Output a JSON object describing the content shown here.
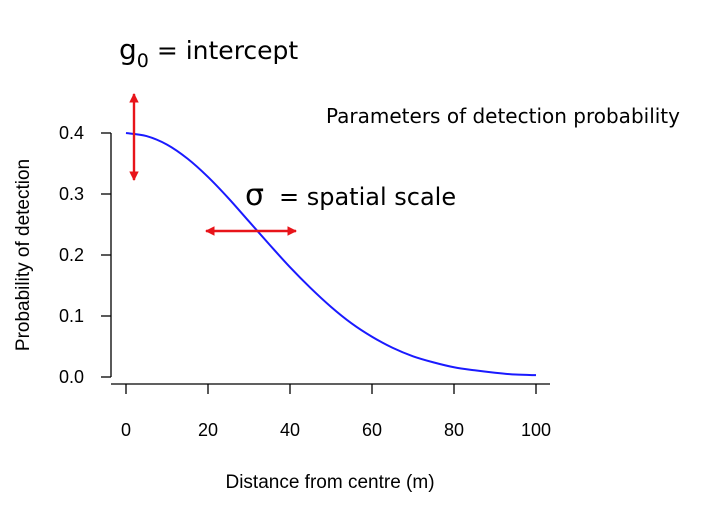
{
  "chart_data": {
    "type": "line",
    "title": "Parameters of detection probability",
    "xlabel": "Distance from centre  (m)",
    "ylabel": "Probability of detection",
    "xlim": [
      0,
      100
    ],
    "ylim": [
      0,
      0.4
    ],
    "x_ticks": [
      0,
      20,
      40,
      60,
      80,
      100
    ],
    "y_ticks": [
      0.0,
      0.1,
      0.2,
      0.3,
      0.4
    ],
    "x_tick_labels": [
      "0",
      "20",
      "40",
      "60",
      "80",
      "100"
    ],
    "y_tick_labels": [
      "0.0",
      "0.1",
      "0.2",
      "0.3",
      "0.4"
    ],
    "series": [
      {
        "color": "#1a1aff",
        "x": [
          0,
          5,
          10,
          15,
          20,
          25,
          30,
          35,
          40,
          45,
          50,
          55,
          60,
          65,
          70,
          75,
          80,
          85,
          90,
          95,
          100
        ],
        "y": [
          0.4,
          0.395,
          0.381,
          0.358,
          0.328,
          0.293,
          0.255,
          0.217,
          0.18,
          0.146,
          0.115,
          0.088,
          0.066,
          0.048,
          0.034,
          0.024,
          0.016,
          0.011,
          0.007,
          0.004,
          0.003
        ]
      }
    ],
    "annotations": {
      "g0_symbol": "g",
      "g0_subscript": "0",
      "g0_text": " = intercept",
      "sigma_symbol": "σ",
      "sigma_text": "=  spatial scale",
      "arrow_color": "#e8141a"
    }
  }
}
